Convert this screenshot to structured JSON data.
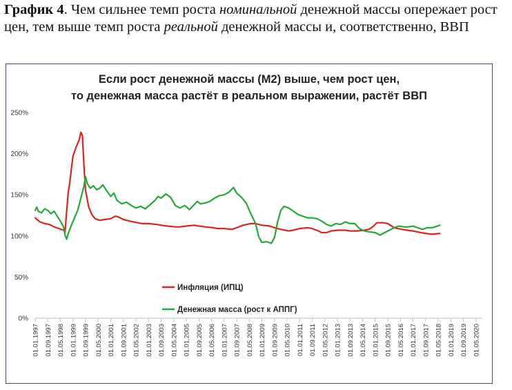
{
  "caption": {
    "lead": "График 4",
    "part1": ". Чем сильнее темп роста ",
    "em1": "номинальной",
    "part2": " денежной массы опережает рост цен, тем выше темп роста ",
    "em2": "реальной",
    "part3": " денежной массы и, соответственно, ВВП"
  },
  "chart_data": {
    "type": "line",
    "title": [
      "Если рост денежной массы (М2) выше, чем рост цен,",
      "то денежная масса растёт в реальном выражении, растёт ВВП"
    ],
    "ylim": [
      0,
      250
    ],
    "y_ticks": [
      "0%",
      "50%",
      "100%",
      "150%",
      "200%",
      "250%"
    ],
    "y_tick_values": [
      0,
      50,
      100,
      150,
      200,
      250
    ],
    "x_ticks": [
      "01.01.1997",
      "01.09.1997",
      "01.05.1998",
      "01.01.1999",
      "01.09.1999",
      "01.05.2000",
      "01.01.2001",
      "01.09.2001",
      "01.05.2002",
      "01.01.2003",
      "01.09.2003",
      "01.05.2004",
      "01.01.2005",
      "01.09.2005",
      "01.05.2006",
      "01.01.2007",
      "01.09.2007",
      "01.05.2008",
      "01.01.2009",
      "01.09.2009",
      "01.05.2010",
      "01.01.2011",
      "01.09.2011",
      "01.05.2012",
      "01.01.2013",
      "01.09.2013",
      "01.05.2014",
      "01.01.2015",
      "01.09.2015",
      "01.05.2016",
      "01.01.2017",
      "01.09.2017",
      "01.05.2018",
      "01.01.2019",
      "01.09.2019",
      "01.05.2020"
    ],
    "legend_placement": "inside-lower-left",
    "grid": false,
    "colors": {
      "inflation": "#e3211c",
      "money": "#22aa33"
    },
    "series": [
      {
        "name": "Инфляция (ИПЦ)",
        "key": "inflation",
        "points": [
          [
            "1997-01-01",
            122
          ],
          [
            "1997-04-01",
            117
          ],
          [
            "1997-07-01",
            115
          ],
          [
            "1997-10-01",
            114
          ],
          [
            "1998-01-01",
            111
          ],
          [
            "1998-04-01",
            109
          ],
          [
            "1998-07-01",
            107
          ],
          [
            "1998-08-01",
            105
          ],
          [
            "1998-09-01",
            130
          ],
          [
            "1998-10-01",
            153
          ],
          [
            "1998-11-01",
            165
          ],
          [
            "1998-12-01",
            182
          ],
          [
            "1999-01-01",
            197
          ],
          [
            "1999-03-01",
            208
          ],
          [
            "1999-05-01",
            217
          ],
          [
            "1999-06-01",
            226
          ],
          [
            "1999-07-01",
            222
          ],
          [
            "1999-08-01",
            185
          ],
          [
            "1999-09-01",
            155
          ],
          [
            "1999-11-01",
            135
          ],
          [
            "2000-01-01",
            126
          ],
          [
            "2000-03-01",
            121
          ],
          [
            "2000-06-01",
            119
          ],
          [
            "2000-09-01",
            120
          ],
          [
            "2001-01-01",
            121
          ],
          [
            "2001-04-01",
            124
          ],
          [
            "2001-06-01",
            123
          ],
          [
            "2001-09-01",
            120
          ],
          [
            "2002-01-01",
            118
          ],
          [
            "2002-06-01",
            116
          ],
          [
            "2002-09-01",
            115
          ],
          [
            "2003-01-01",
            115
          ],
          [
            "2003-06-01",
            114
          ],
          [
            "2003-09-01",
            113
          ],
          [
            "2004-01-01",
            112
          ],
          [
            "2004-06-01",
            111
          ],
          [
            "2004-09-01",
            111
          ],
          [
            "2005-01-01",
            112
          ],
          [
            "2005-06-01",
            113
          ],
          [
            "2005-09-01",
            112
          ],
          [
            "2006-01-01",
            111
          ],
          [
            "2006-06-01",
            110
          ],
          [
            "2006-09-01",
            109
          ],
          [
            "2007-01-01",
            109
          ],
          [
            "2007-06-01",
            108
          ],
          [
            "2007-09-01",
            110
          ],
          [
            "2008-01-01",
            113
          ],
          [
            "2008-06-01",
            115
          ],
          [
            "2008-09-01",
            115
          ],
          [
            "2009-01-01",
            113
          ],
          [
            "2009-06-01",
            112
          ],
          [
            "2009-09-01",
            110
          ],
          [
            "2010-01-01",
            108
          ],
          [
            "2010-06-01",
            106
          ],
          [
            "2010-09-01",
            107
          ],
          [
            "2011-01-01",
            109
          ],
          [
            "2011-06-01",
            110
          ],
          [
            "2011-09-01",
            109
          ],
          [
            "2012-01-01",
            106
          ],
          [
            "2012-03-01",
            104
          ],
          [
            "2012-06-01",
            104
          ],
          [
            "2012-09-01",
            106
          ],
          [
            "2013-01-01",
            107
          ],
          [
            "2013-06-01",
            107
          ],
          [
            "2013-09-01",
            106
          ],
          [
            "2014-01-01",
            106
          ],
          [
            "2014-06-01",
            107
          ],
          [
            "2014-09-01",
            108
          ],
          [
            "2014-12-01",
            112
          ],
          [
            "2015-02-01",
            116
          ],
          [
            "2015-06-01",
            116
          ],
          [
            "2015-09-01",
            115
          ],
          [
            "2016-01-01",
            110
          ],
          [
            "2016-06-01",
            108
          ],
          [
            "2016-09-01",
            107
          ],
          [
            "2017-01-01",
            106
          ],
          [
            "2017-06-01",
            104
          ],
          [
            "2017-09-01",
            103
          ],
          [
            "2018-01-01",
            102
          ],
          [
            "2018-06-01",
            103
          ]
        ]
      },
      {
        "name": "Денежная масса (рост к АППГ)",
        "key": "money",
        "points": [
          [
            "1997-01-01",
            131
          ],
          [
            "1997-02-01",
            135
          ],
          [
            "1997-03-01",
            130
          ],
          [
            "1997-05-01",
            128
          ],
          [
            "1997-07-01",
            133
          ],
          [
            "1997-09-01",
            131
          ],
          [
            "1997-11-01",
            127
          ],
          [
            "1998-01-01",
            130
          ],
          [
            "1998-03-01",
            124
          ],
          [
            "1998-05-01",
            118
          ],
          [
            "1998-07-01",
            111
          ],
          [
            "1998-08-01",
            101
          ],
          [
            "1998-09-01",
            96
          ],
          [
            "1998-10-01",
            103
          ],
          [
            "1998-12-01",
            113
          ],
          [
            "1999-02-01",
            122
          ],
          [
            "1999-04-01",
            131
          ],
          [
            "1999-06-01",
            146
          ],
          [
            "1999-08-01",
            161
          ],
          [
            "1999-09-01",
            172
          ],
          [
            "1999-10-01",
            164
          ],
          [
            "1999-12-01",
            158
          ],
          [
            "2000-02-01",
            161
          ],
          [
            "2000-04-01",
            156
          ],
          [
            "2000-06-01",
            158
          ],
          [
            "2000-08-01",
            162
          ],
          [
            "2000-10-01",
            156
          ],
          [
            "2001-01-01",
            148
          ],
          [
            "2001-03-01",
            152
          ],
          [
            "2001-05-01",
            143
          ],
          [
            "2001-08-01",
            139
          ],
          [
            "2001-11-01",
            141
          ],
          [
            "2002-02-01",
            137
          ],
          [
            "2002-05-01",
            134
          ],
          [
            "2002-08-01",
            136
          ],
          [
            "2002-11-01",
            133
          ],
          [
            "2003-02-01",
            138
          ],
          [
            "2003-05-01",
            143
          ],
          [
            "2003-07-01",
            148
          ],
          [
            "2003-09-01",
            146
          ],
          [
            "2003-12-01",
            151
          ],
          [
            "2004-03-01",
            147
          ],
          [
            "2004-06-01",
            137
          ],
          [
            "2004-09-01",
            134
          ],
          [
            "2004-12-01",
            137
          ],
          [
            "2005-03-01",
            132
          ],
          [
            "2005-06-01",
            138
          ],
          [
            "2005-08-01",
            142
          ],
          [
            "2005-10-01",
            139
          ],
          [
            "2006-01-01",
            140
          ],
          [
            "2006-04-01",
            142
          ],
          [
            "2006-07-01",
            146
          ],
          [
            "2006-10-01",
            149
          ],
          [
            "2007-01-01",
            150
          ],
          [
            "2007-04-01",
            153
          ],
          [
            "2007-07-01",
            159
          ],
          [
            "2007-09-01",
            152
          ],
          [
            "2007-12-01",
            147
          ],
          [
            "2008-03-01",
            140
          ],
          [
            "2008-06-01",
            127
          ],
          [
            "2008-09-01",
            115
          ],
          [
            "2008-11-01",
            99
          ],
          [
            "2009-01-01",
            92
          ],
          [
            "2009-04-01",
            93
          ],
          [
            "2009-07-01",
            91
          ],
          [
            "2009-09-01",
            98
          ],
          [
            "2009-11-01",
            117
          ],
          [
            "2010-01-01",
            131
          ],
          [
            "2010-03-01",
            136
          ],
          [
            "2010-06-01",
            134
          ],
          [
            "2010-09-01",
            130
          ],
          [
            "2010-12-01",
            126
          ],
          [
            "2011-03-01",
            124
          ],
          [
            "2011-06-01",
            122
          ],
          [
            "2011-09-01",
            122
          ],
          [
            "2011-12-01",
            121
          ],
          [
            "2012-03-01",
            118
          ],
          [
            "2012-06-01",
            114
          ],
          [
            "2012-09-01",
            112
          ],
          [
            "2012-12-01",
            115
          ],
          [
            "2013-03-01",
            114
          ],
          [
            "2013-06-01",
            117
          ],
          [
            "2013-09-01",
            115
          ],
          [
            "2013-12-01",
            115
          ],
          [
            "2014-03-01",
            109
          ],
          [
            "2014-06-01",
            106
          ],
          [
            "2014-09-01",
            105
          ],
          [
            "2015-01-01",
            104
          ],
          [
            "2015-04-01",
            101
          ],
          [
            "2015-07-01",
            104
          ],
          [
            "2015-10-01",
            107
          ],
          [
            "2016-01-01",
            110
          ],
          [
            "2016-04-01",
            112
          ],
          [
            "2016-07-01",
            111
          ],
          [
            "2016-10-01",
            111
          ],
          [
            "2017-01-01",
            112
          ],
          [
            "2017-04-01",
            110
          ],
          [
            "2017-07-01",
            108
          ],
          [
            "2017-10-01",
            110
          ],
          [
            "2018-01-01",
            110
          ],
          [
            "2018-03-01",
            111
          ],
          [
            "2018-06-01",
            113
          ]
        ]
      }
    ]
  }
}
